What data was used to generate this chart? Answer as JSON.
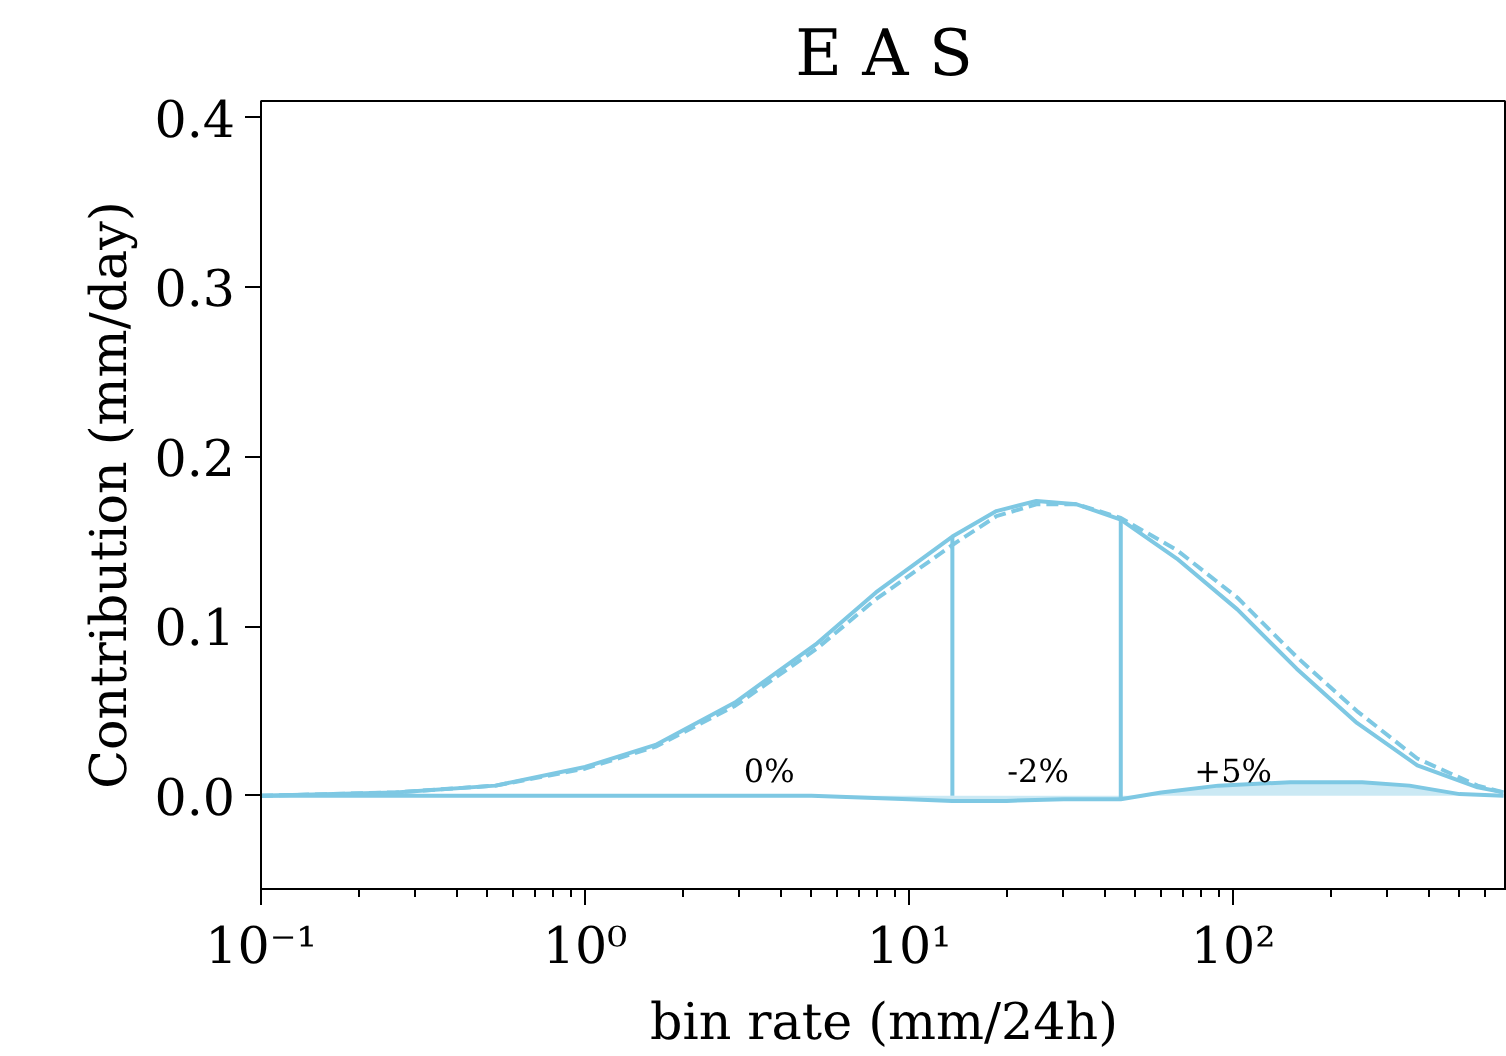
{
  "chart_data": {
    "type": "line",
    "title": "E A S",
    "xlabel": "bin rate (mm/24h)",
    "ylabel": "Contribution (mm/day)",
    "log": "x",
    "xlim": [
      0.1,
      700
    ],
    "ylim": [
      -0.055,
      0.41
    ],
    "xticks": [
      {
        "value": 0.1,
        "label": "10⁻¹"
      },
      {
        "value": 1,
        "label": "10⁰"
      },
      {
        "value": 10,
        "label": "10¹"
      },
      {
        "value": 100,
        "label": "10²"
      }
    ],
    "yticks": [
      {
        "value": 0,
        "label": "0.0"
      },
      {
        "value": 0.1,
        "label": "0.1"
      },
      {
        "value": 0.2,
        "label": "0.2"
      },
      {
        "value": 0.3,
        "label": "0.3"
      },
      {
        "value": 0.4,
        "label": "0.4"
      }
    ],
    "grid": false,
    "marker": "none",
    "series": [
      {
        "line_style": "solid",
        "color": "#7ec8e3",
        "x": [
          0.1,
          0.26,
          0.53,
          1.0,
          1.65,
          2.9,
          5.2,
          7.9,
          13.6,
          18.6,
          24.7,
          32.9,
          45,
          67,
          103,
          157,
          241,
          370,
          568,
          683
        ],
        "values": [
          0.0,
          0.002,
          0.006,
          0.017,
          0.03,
          0.055,
          0.09,
          0.12,
          0.153,
          0.168,
          0.174,
          0.172,
          0.163,
          0.14,
          0.11,
          0.075,
          0.043,
          0.018,
          0.005,
          0.002
        ]
      },
      {
        "line_style": "dashed",
        "color": "#7ec8e3",
        "x": [
          0.1,
          0.26,
          0.53,
          1.0,
          1.65,
          2.9,
          5.2,
          7.9,
          13.6,
          18.6,
          24.7,
          32.9,
          45,
          67,
          103,
          157,
          241,
          370,
          568,
          683
        ],
        "values": [
          0.0,
          0.002,
          0.006,
          0.016,
          0.029,
          0.053,
          0.087,
          0.116,
          0.148,
          0.165,
          0.172,
          0.172,
          0.164,
          0.145,
          0.117,
          0.082,
          0.05,
          0.022,
          0.006,
          0.002
        ]
      },
      {
        "type": "area",
        "line_style": "solid",
        "color": "#7ec8e3",
        "x": [
          0.1,
          1,
          5,
          10,
          13.6,
          20,
          30,
          45,
          60,
          90,
          150,
          250,
          350,
          500,
          683
        ],
        "values": [
          0.0,
          0.0,
          0.0,
          -0.002,
          -0.003,
          -0.003,
          -0.002,
          -0.002,
          0.002,
          0.006,
          0.008,
          0.008,
          0.006,
          0.001,
          0.0
        ]
      },
      {
        "type": "line",
        "line_style": "solid",
        "color": "#7ec8e3",
        "x": [
          13.6,
          13.6
        ],
        "values": [
          0.0,
          0.153
        ]
      },
      {
        "type": "line",
        "line_style": "solid",
        "color": "#7ec8e3",
        "x": [
          45,
          45
        ],
        "values": [
          -0.002,
          0.163
        ]
      }
    ],
    "annotations": [
      {
        "text": "0%",
        "x": 3.7,
        "y": 0.0
      },
      {
        "text": "-2%",
        "x": 25,
        "y": 0.0
      },
      {
        "text": "+5%",
        "x": 100,
        "y": 0.0
      }
    ]
  }
}
